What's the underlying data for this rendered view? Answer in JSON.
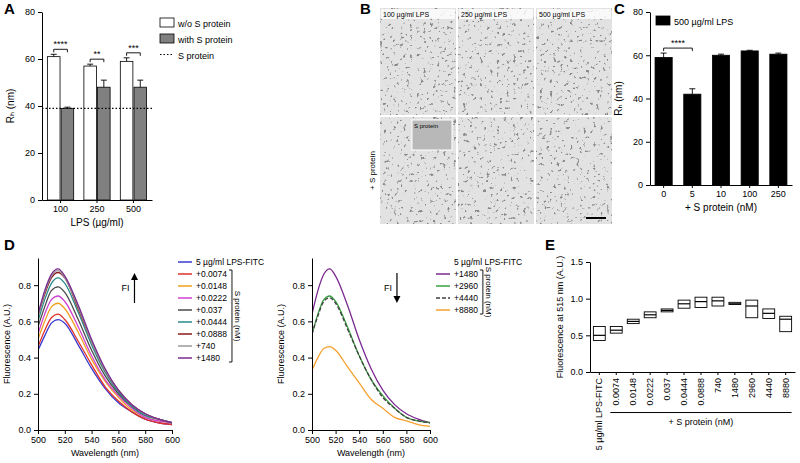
{
  "chart_data": [
    {
      "panel": "A",
      "type": "bar",
      "categories": [
        100,
        250,
        500
      ],
      "xlabel": "LPS (µg/ml)",
      "ylabel": "Rₕ (nm)",
      "ylim": [
        0,
        80
      ],
      "yticks": [
        0,
        20,
        40,
        60,
        80
      ],
      "legend": "right",
      "series": [
        {
          "name": "w/o S protein",
          "color": "#ffffff",
          "values": [
            61,
            57,
            59
          ],
          "errors": [
            1,
            0.8,
            1.5
          ]
        },
        {
          "name": "with S protein",
          "color": "#808080",
          "values": [
            39,
            48,
            48
          ],
          "errors": [
            0.5,
            3,
            3
          ]
        }
      ],
      "reference_line": {
        "name": "S protein",
        "value": 39,
        "line_style": "dotted",
        "color": "#000000"
      },
      "significance": [
        "****",
        "**",
        "***"
      ]
    },
    {
      "panel": "B",
      "type": "image",
      "column_labels": [
        "100 µg/ml LPS",
        "250 µg/ml LPS",
        "500 µg/ml LPS"
      ],
      "row_label": "+ S protein",
      "inset_label": "S protein"
    },
    {
      "panel": "C",
      "type": "bar",
      "categories": [
        0,
        5,
        10,
        100,
        250
      ],
      "xlabel": "+ S protein (nM)",
      "ylabel": "Rₕ (nm)",
      "ylim": [
        0,
        80
      ],
      "yticks": [
        0,
        20,
        40,
        60,
        80
      ],
      "legend": "top",
      "series": [
        {
          "name": "500 µg/ml LPS",
          "color": "#000000",
          "values": [
            59,
            42,
            60,
            62,
            60.5
          ],
          "errors": [
            2,
            2.5,
            0.5,
            0.3,
            0.5
          ]
        }
      ],
      "significance": [
        "****",
        null,
        null,
        null,
        null
      ]
    },
    {
      "panel": "D",
      "type": "line",
      "x": [
        500,
        505,
        510,
        515,
        520,
        530,
        540,
        550,
        560,
        570,
        580,
        590,
        600
      ],
      "xlim": [
        500,
        600
      ],
      "xticks": [
        500,
        520,
        540,
        560,
        580,
        600
      ],
      "ylim": [
        0,
        0.95
      ],
      "yticks": [
        {
          "value": 0,
          "label": "0.0"
        },
        {
          "value": 0.2,
          "label": "0.2"
        },
        {
          "value": 0.4,
          "label": "0.4"
        },
        {
          "value": 0.6,
          "label": "0.6"
        },
        {
          "value": 0.8,
          "label": "0.8"
        }
      ],
      "xlabel": "Wavelength (nm)",
      "ylabel": "Fluorescence (A.U.)",
      "legend": "right",
      "legend_bracket_label": "S protein (nM)",
      "annotation": "FI",
      "series": [
        {
          "name": "5 µg/ml LPS-FITC",
          "color": "#3a3ad0",
          "values": [
            0.44,
            0.52,
            0.59,
            0.61,
            0.59,
            0.47,
            0.34,
            0.23,
            0.15,
            0.1,
            0.06,
            0.04,
            0.03
          ]
        },
        {
          "name": "+0.0074",
          "color": "#e0302a",
          "values": [
            0.46,
            0.55,
            0.62,
            0.64,
            0.61,
            0.49,
            0.36,
            0.24,
            0.16,
            0.1,
            0.06,
            0.04,
            0.03
          ]
        },
        {
          "name": "+0.0148",
          "color": "#f0a020",
          "values": [
            0.5,
            0.6,
            0.68,
            0.7,
            0.67,
            0.54,
            0.39,
            0.27,
            0.18,
            0.11,
            0.07,
            0.05,
            0.04
          ]
        },
        {
          "name": "+0.0222",
          "color": "#d040d0",
          "values": [
            0.53,
            0.64,
            0.72,
            0.74,
            0.71,
            0.57,
            0.41,
            0.28,
            0.19,
            0.12,
            0.07,
            0.05,
            0.04
          ]
        },
        {
          "name": "+0.037",
          "color": "#4a4a4a",
          "values": [
            0.57,
            0.68,
            0.77,
            0.79,
            0.76,
            0.61,
            0.44,
            0.3,
            0.2,
            0.13,
            0.08,
            0.06,
            0.04
          ]
        },
        {
          "name": "+0.0444",
          "color": "#2a8a8a",
          "values": [
            0.6,
            0.72,
            0.81,
            0.84,
            0.81,
            0.65,
            0.47,
            0.32,
            0.21,
            0.13,
            0.08,
            0.06,
            0.04
          ]
        },
        {
          "name": "+0.0888",
          "color": "#8b1a1a",
          "values": [
            0.63,
            0.75,
            0.84,
            0.87,
            0.84,
            0.67,
            0.49,
            0.33,
            0.22,
            0.14,
            0.09,
            0.06,
            0.04
          ]
        },
        {
          "name": "+740",
          "color": "#9a9a9a",
          "values": [
            0.63,
            0.76,
            0.85,
            0.88,
            0.84,
            0.68,
            0.49,
            0.33,
            0.22,
            0.14,
            0.09,
            0.06,
            0.04
          ]
        },
        {
          "name": "+1480",
          "color": "#7a2a90",
          "values": [
            0.64,
            0.77,
            0.86,
            0.89,
            0.85,
            0.69,
            0.5,
            0.34,
            0.22,
            0.14,
            0.09,
            0.06,
            0.04
          ]
        }
      ]
    },
    {
      "type": "line",
      "x": [
        500,
        505,
        510,
        515,
        520,
        530,
        540,
        550,
        560,
        570,
        580,
        590,
        600
      ],
      "xlim": [
        500,
        600
      ],
      "xticks": [
        500,
        520,
        540,
        560,
        580,
        600
      ],
      "ylim": [
        0,
        0.95
      ],
      "yticks": [
        {
          "value": 0,
          "label": "0.0"
        },
        {
          "value": 0.2,
          "label": "0.2"
        },
        {
          "value": 0.4,
          "label": "0.4"
        },
        {
          "value": 0.6,
          "label": "0.6"
        },
        {
          "value": 0.8,
          "label": "0.8"
        }
      ],
      "xlabel": "Wavelength (nm)",
      "ylabel": "Fluorescence (A.U.)",
      "legend": "right",
      "legend_title": "5 µg/ml LPS-FITC",
      "legend_bracket_label": "S protein (nM)",
      "annotation": "FI",
      "series": [
        {
          "name": "+1480",
          "color": "#7a2a90",
          "values": [
            0.64,
            0.77,
            0.86,
            0.89,
            0.85,
            0.69,
            0.5,
            0.34,
            0.22,
            0.14,
            0.09,
            0.06,
            0.04
          ]
        },
        {
          "name": "+2960",
          "color": "#3aa040",
          "values": [
            0.53,
            0.64,
            0.72,
            0.74,
            0.71,
            0.57,
            0.41,
            0.28,
            0.19,
            0.12,
            0.07,
            0.05,
            0.04
          ]
        },
        {
          "name": "+4440",
          "color": "#404040",
          "line_style": "dashed",
          "values": [
            0.53,
            0.63,
            0.71,
            0.73,
            0.7,
            0.56,
            0.41,
            0.28,
            0.18,
            0.12,
            0.07,
            0.05,
            0.04
          ]
        },
        {
          "name": "+8880",
          "color": "#f5a030",
          "values": [
            0.33,
            0.4,
            0.45,
            0.46,
            0.44,
            0.35,
            0.26,
            0.17,
            0.12,
            0.07,
            0.05,
            0.03,
            0.02
          ]
        }
      ]
    },
    {
      "panel": "E",
      "type": "box",
      "categories": [
        "5 µg/ml LPS-FITC",
        "0.0074",
        "0.0148",
        "0.0222",
        "0.037",
        "0.0444",
        "0.0888",
        "740",
        "1480",
        "2960",
        "4440",
        "8880"
      ],
      "min": [
        0.43,
        0.53,
        0.66,
        0.74,
        0.82,
        0.87,
        0.88,
        0.9,
        0.92,
        0.74,
        0.73,
        0.55
      ],
      "median": [
        0.5,
        0.57,
        0.69,
        0.78,
        0.84,
        0.93,
        0.96,
        0.97,
        0.93,
        0.9,
        0.8,
        0.72
      ],
      "max": [
        0.62,
        0.62,
        0.72,
        0.82,
        0.86,
        0.98,
        1.02,
        1.02,
        0.95,
        0.98,
        0.86,
        0.76
      ],
      "ylim": [
        0,
        1.5
      ],
      "yticks": [
        {
          "value": 0,
          "label": "0.0"
        },
        {
          "value": 0.5,
          "label": "0.5"
        },
        {
          "value": 1,
          "label": "1.0"
        },
        {
          "value": 1.5,
          "label": "1.5"
        }
      ],
      "ylabel": "Fluorescence at 515 nm (A.U.)",
      "group_label": "+ S protein (nM)"
    }
  ]
}
